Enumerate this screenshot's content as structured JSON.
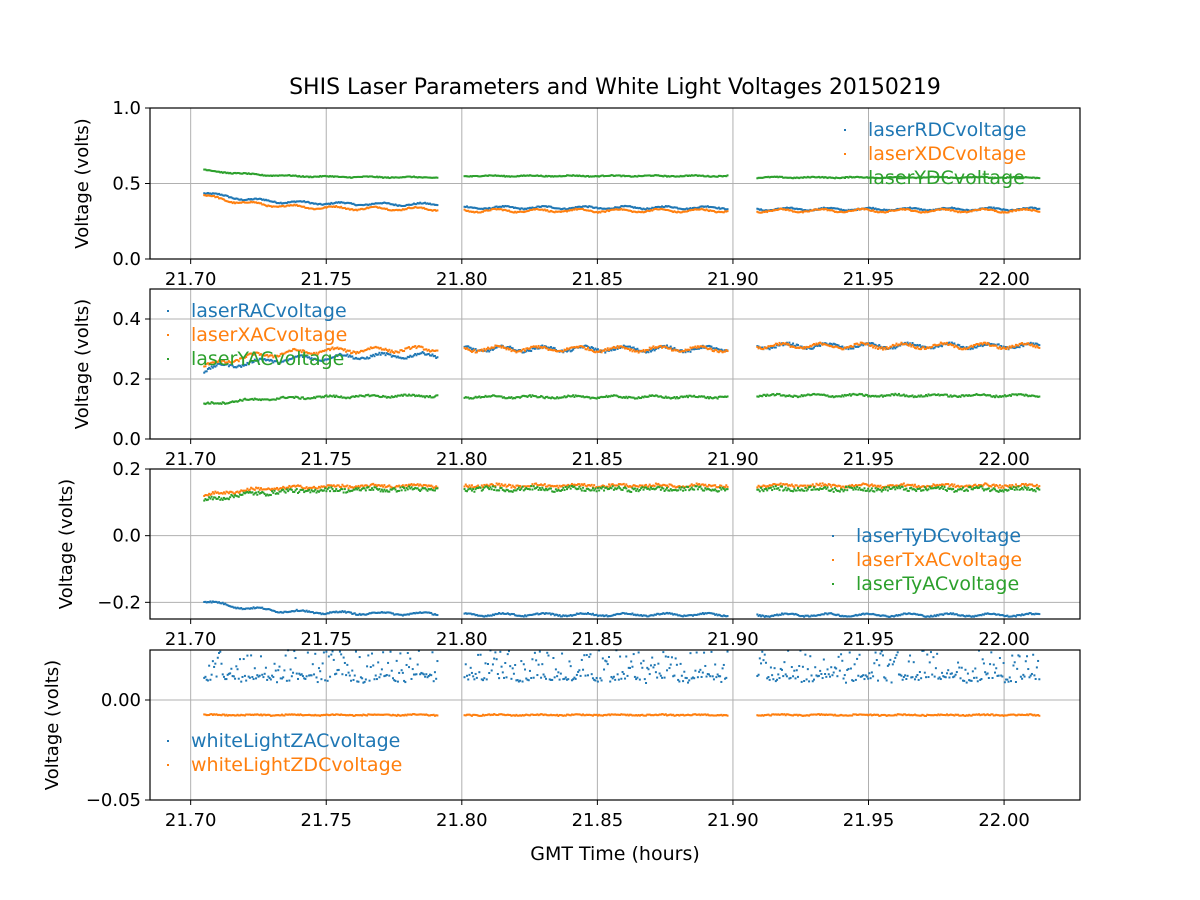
{
  "figure": {
    "title": "SHIS Laser Parameters and White Light Voltages 20150219",
    "xlabel": "GMT Time (hours)"
  },
  "colors": {
    "blue": "#1f77b4",
    "orange": "#ff7f0e",
    "green": "#2ca02c",
    "grid": "#b0b0b0"
  },
  "chart_data": [
    {
      "type": "scatter",
      "ylabel": "Voltage (volts)",
      "xlim": [
        21.685,
        22.028
      ],
      "ylim": [
        0.0,
        1.0
      ],
      "xticks": [
        21.7,
        21.75,
        21.8,
        21.85,
        21.9,
        21.95,
        22.0
      ],
      "xtick_labels": [
        "21.70",
        "21.75",
        "21.80",
        "21.85",
        "21.90",
        "21.95",
        "22.00"
      ],
      "yticks": [
        0.0,
        0.5,
        1.0
      ],
      "ytick_labels": [
        "0.0",
        "0.5",
        "1.0"
      ],
      "grid": true,
      "legend_position": "upper right",
      "x_segments": [
        [
          21.705,
          21.791
        ],
        [
          21.801,
          21.898
        ],
        [
          21.909,
          22.013
        ]
      ],
      "series": [
        {
          "name": "laserRDCvoltage",
          "color": "#1f77b4",
          "start": 0.44,
          "end": 0.36,
          "tau": 0.02,
          "segment_levels": [
            0.36,
            0.34,
            0.33
          ],
          "wiggle": 0.008,
          "noise": 0.004
        },
        {
          "name": "laserXDCvoltage",
          "color": "#ff7f0e",
          "start": 0.42,
          "end": 0.33,
          "tau": 0.02,
          "segment_levels": [
            0.33,
            0.32,
            0.32
          ],
          "wiggle": 0.01,
          "noise": 0.004
        },
        {
          "name": "laserYDCvoltage",
          "color": "#2ca02c",
          "start": 0.59,
          "end": 0.54,
          "tau": 0.02,
          "segment_levels": [
            0.54,
            0.55,
            0.54
          ],
          "wiggle": 0.003,
          "noise": 0.003
        }
      ]
    },
    {
      "type": "scatter",
      "ylabel": "Voltage (volts)",
      "xlim": [
        21.685,
        22.028
      ],
      "ylim": [
        0.0,
        0.5
      ],
      "xticks": [
        21.7,
        21.75,
        21.8,
        21.85,
        21.9,
        21.95,
        22.0
      ],
      "xtick_labels": [
        "21.70",
        "21.75",
        "21.80",
        "21.85",
        "21.90",
        "21.95",
        "22.00"
      ],
      "yticks": [
        0.0,
        0.2,
        0.4
      ],
      "ytick_labels": [
        "0.0",
        "0.2",
        "0.4"
      ],
      "grid": true,
      "legend_position": "upper left",
      "x_segments": [
        [
          21.705,
          21.791
        ],
        [
          21.801,
          21.898
        ],
        [
          21.909,
          22.013
        ]
      ],
      "series": [
        {
          "name": "laserRACvoltage",
          "color": "#1f77b4",
          "start": 0.23,
          "end": 0.28,
          "tau": 0.025,
          "segment_levels": [
            0.28,
            0.3,
            0.31
          ],
          "wiggle": 0.008,
          "noise": 0.004
        },
        {
          "name": "laserXACvoltage",
          "color": "#ff7f0e",
          "start": 0.24,
          "end": 0.3,
          "tau": 0.02,
          "segment_levels": [
            0.3,
            0.3,
            0.31
          ],
          "wiggle": 0.008,
          "noise": 0.004
        },
        {
          "name": "laserYACvoltage",
          "color": "#2ca02c",
          "start": 0.115,
          "end": 0.145,
          "tau": 0.025,
          "segment_levels": [
            0.145,
            0.14,
            0.145
          ],
          "wiggle": 0.003,
          "noise": 0.003
        }
      ]
    },
    {
      "type": "scatter",
      "ylabel": "Voltage (volts)",
      "xlim": [
        21.685,
        22.028
      ],
      "ylim": [
        -0.25,
        0.2
      ],
      "xticks": [
        21.7,
        21.75,
        21.8,
        21.85,
        21.9,
        21.95,
        22.0
      ],
      "xtick_labels": [
        "21.70",
        "21.75",
        "21.80",
        "21.85",
        "21.90",
        "21.95",
        "22.00"
      ],
      "yticks": [
        -0.2,
        0.0,
        0.2
      ],
      "ytick_labels": [
        "−0.2",
        "0.0",
        "0.2"
      ],
      "grid": true,
      "legend_position": "lower right",
      "x_segments": [
        [
          21.705,
          21.791
        ],
        [
          21.801,
          21.898
        ],
        [
          21.909,
          22.013
        ]
      ],
      "series": [
        {
          "name": "laserTyDCvoltage",
          "color": "#1f77b4",
          "start": -0.195,
          "end": -0.235,
          "tau": 0.02,
          "segment_levels": [
            -0.235,
            -0.237,
            -0.238
          ],
          "wiggle": 0.004,
          "noise": 0.002
        },
        {
          "name": "laserTxACvoltage",
          "color": "#ff7f0e",
          "start": 0.12,
          "end": 0.15,
          "tau": 0.02,
          "segment_levels": [
            0.15,
            0.15,
            0.15
          ],
          "wiggle": 0.003,
          "noise": 0.004
        },
        {
          "name": "laserTyACvoltage",
          "color": "#2ca02c",
          "start": 0.105,
          "end": 0.14,
          "tau": 0.02,
          "segment_levels": [
            0.14,
            0.14,
            0.14
          ],
          "wiggle": 0.003,
          "noise": 0.006
        }
      ]
    },
    {
      "type": "scatter",
      "ylabel": "Voltage (volts)",
      "xlabel": "GMT Time (hours)",
      "xlim": [
        21.685,
        22.028
      ],
      "ylim": [
        -0.05,
        0.025
      ],
      "xticks": [
        21.7,
        21.75,
        21.8,
        21.85,
        21.9,
        21.95,
        22.0
      ],
      "xtick_labels": [
        "21.70",
        "21.75",
        "21.80",
        "21.85",
        "21.90",
        "21.95",
        "22.00"
      ],
      "yticks": [
        -0.05,
        0.0
      ],
      "ytick_labels": [
        "−0.05",
        "0.00"
      ],
      "grid": true,
      "legend_position": "lower left",
      "x_segments": [
        [
          21.705,
          21.791
        ],
        [
          21.801,
          21.898
        ],
        [
          21.909,
          22.013
        ]
      ],
      "series": [
        {
          "name": "whiteLightZACvoltage",
          "color": "#1f77b4",
          "start": 0.011,
          "end": 0.011,
          "tau": 0.02,
          "segment_levels": [
            0.011,
            0.011,
            0.011
          ],
          "wiggle": 0.001,
          "noise": 0.0015,
          "scatter_high": [
            0.012,
            0.025
          ]
        },
        {
          "name": "whiteLightZDCvoltage",
          "color": "#ff7f0e",
          "start": -0.0075,
          "end": -0.0075,
          "tau": 0.02,
          "segment_levels": [
            -0.0075,
            -0.0075,
            -0.0075
          ],
          "wiggle": 0.0002,
          "noise": 0.0003
        }
      ]
    }
  ]
}
